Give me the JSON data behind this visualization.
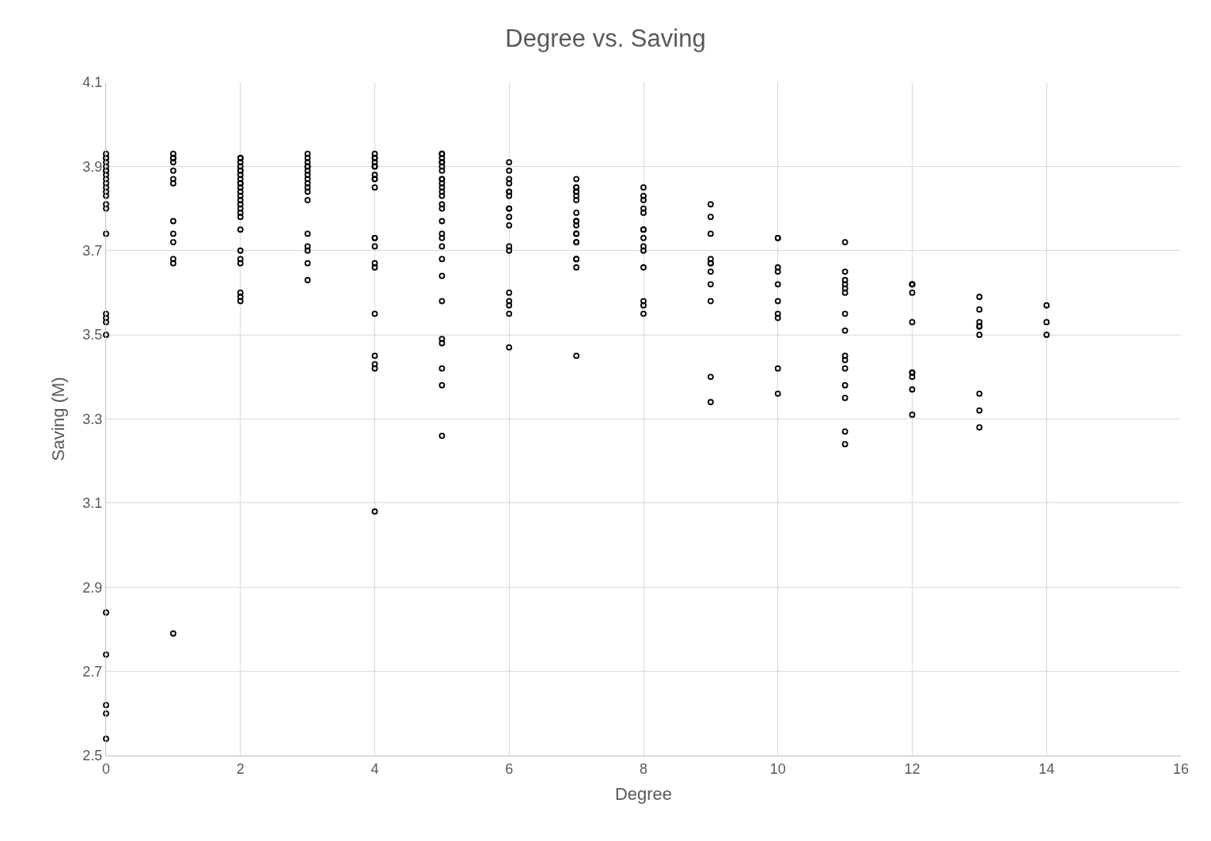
{
  "chart_data": {
    "type": "scatter",
    "title": "Degree vs. Saving",
    "xlabel": "Degree",
    "ylabel": "Saving (M)",
    "xlim": [
      0,
      16
    ],
    "xticks": [
      0,
      2,
      4,
      6,
      8,
      10,
      12,
      14,
      16
    ],
    "ylim": [
      2.5,
      4.1
    ],
    "yticks": [
      {
        "value": 2.5,
        "label": "2.5"
      },
      {
        "value": 2.7,
        "label": "2.7"
      },
      {
        "value": 2.9,
        "label": "2.9"
      },
      {
        "value": 3.1,
        "label": "3.1"
      },
      {
        "value": 3.3,
        "label": "3.3"
      },
      {
        "value": 3.5,
        "label": "3.5"
      },
      {
        "value": 3.7,
        "label": "3.7"
      },
      {
        "value": 3.9,
        "label": "3.9"
      },
      {
        "value": 4.1,
        "label": "4.1"
      }
    ],
    "grid": true,
    "marker": "circle",
    "series": [
      {
        "color": "#000000",
        "x": [
          0,
          0,
          0,
          0,
          0,
          0,
          0,
          0,
          0,
          0,
          0,
          0,
          0,
          0,
          0,
          0,
          0,
          0,
          0,
          0,
          0,
          0,
          0,
          0,
          0,
          1,
          1,
          1,
          1,
          1,
          1,
          1,
          1,
          1,
          1,
          1,
          1,
          1,
          2,
          2,
          2,
          2,
          2,
          2,
          2,
          2,
          2,
          2,
          2,
          2,
          2,
          2,
          2,
          2,
          2,
          2,
          2,
          2,
          2,
          2,
          2,
          2,
          2,
          3,
          3,
          3,
          3,
          3,
          3,
          3,
          3,
          3,
          3,
          3,
          3,
          3,
          3,
          3,
          3,
          3,
          4,
          4,
          4,
          4,
          4,
          4,
          4,
          4,
          4,
          4,
          4,
          4,
          4,
          4,
          4,
          4,
          4,
          4,
          4,
          4,
          5,
          5,
          5,
          5,
          5,
          5,
          5,
          5,
          5,
          5,
          5,
          5,
          5,
          5,
          5,
          5,
          5,
          5,
          5,
          5,
          5,
          5,
          5,
          5,
          5,
          5,
          5,
          6,
          6,
          6,
          6,
          6,
          6,
          6,
          6,
          6,
          6,
          6,
          6,
          6,
          6,
          6,
          6,
          6,
          6,
          7,
          7,
          7,
          7,
          7,
          7,
          7,
          7,
          7,
          7,
          7,
          7,
          7,
          7,
          7,
          7,
          7,
          7,
          7,
          8,
          8,
          8,
          8,
          8,
          8,
          8,
          8,
          8,
          8,
          8,
          8,
          8,
          8,
          9,
          9,
          9,
          9,
          9,
          9,
          9,
          9,
          9,
          9,
          9,
          10,
          10,
          10,
          10,
          10,
          10,
          10,
          10,
          10,
          10,
          11,
          11,
          11,
          11,
          11,
          11,
          11,
          11,
          11,
          11,
          11,
          11,
          11,
          11,
          11,
          12,
          12,
          12,
          12,
          12,
          12,
          12,
          12,
          12,
          12,
          13,
          13,
          13,
          13,
          13,
          13,
          13,
          13,
          13,
          14,
          14,
          14
        ],
        "values": [
          3.93,
          3.92,
          3.92,
          3.91,
          3.9,
          3.89,
          3.89,
          3.88,
          3.87,
          3.86,
          3.85,
          3.84,
          3.83,
          3.81,
          3.8,
          3.74,
          3.55,
          3.54,
          3.53,
          3.5,
          2.84,
          2.74,
          2.62,
          2.6,
          2.54,
          3.93,
          3.92,
          3.92,
          3.91,
          3.89,
          3.87,
          3.86,
          3.77,
          3.74,
          3.72,
          3.68,
          3.67,
          2.79,
          3.92,
          3.92,
          3.91,
          3.9,
          3.89,
          3.89,
          3.88,
          3.87,
          3.86,
          3.86,
          3.85,
          3.84,
          3.83,
          3.82,
          3.81,
          3.8,
          3.79,
          3.78,
          3.75,
          3.7,
          3.68,
          3.67,
          3.6,
          3.59,
          3.58,
          3.93,
          3.92,
          3.91,
          3.9,
          3.9,
          3.89,
          3.88,
          3.87,
          3.86,
          3.85,
          3.84,
          3.82,
          3.74,
          3.71,
          3.7,
          3.67,
          3.63,
          3.93,
          3.92,
          3.92,
          3.91,
          3.9,
          3.9,
          3.88,
          3.87,
          3.87,
          3.85,
          3.73,
          3.73,
          3.71,
          3.67,
          3.66,
          3.55,
          3.45,
          3.43,
          3.42,
          3.08,
          3.93,
          3.93,
          3.92,
          3.91,
          3.91,
          3.9,
          3.89,
          3.87,
          3.87,
          3.86,
          3.85,
          3.84,
          3.83,
          3.81,
          3.8,
          3.77,
          3.74,
          3.73,
          3.71,
          3.68,
          3.64,
          3.58,
          3.49,
          3.48,
          3.42,
          3.38,
          3.26,
          3.91,
          3.89,
          3.87,
          3.86,
          3.84,
          3.84,
          3.83,
          3.8,
          3.8,
          3.78,
          3.76,
          3.71,
          3.7,
          3.6,
          3.58,
          3.57,
          3.55,
          3.47,
          3.87,
          3.85,
          3.85,
          3.84,
          3.84,
          3.83,
          3.82,
          3.79,
          3.77,
          3.77,
          3.76,
          3.74,
          3.74,
          3.72,
          3.72,
          3.68,
          3.68,
          3.66,
          3.45,
          3.85,
          3.83,
          3.82,
          3.8,
          3.79,
          3.75,
          3.75,
          3.73,
          3.71,
          3.7,
          3.66,
          3.58,
          3.57,
          3.55,
          3.81,
          3.78,
          3.74,
          3.68,
          3.67,
          3.67,
          3.65,
          3.62,
          3.58,
          3.4,
          3.34,
          3.73,
          3.73,
          3.66,
          3.65,
          3.62,
          3.58,
          3.55,
          3.54,
          3.42,
          3.36,
          3.72,
          3.65,
          3.63,
          3.62,
          3.61,
          3.6,
          3.55,
          3.51,
          3.45,
          3.44,
          3.42,
          3.38,
          3.35,
          3.27,
          3.24,
          3.62,
          3.62,
          3.62,
          3.6,
          3.53,
          3.41,
          3.41,
          3.4,
          3.37,
          3.31,
          3.59,
          3.56,
          3.53,
          3.52,
          3.52,
          3.5,
          3.36,
          3.32,
          3.28,
          3.57,
          3.53,
          3.5
        ]
      }
    ]
  }
}
